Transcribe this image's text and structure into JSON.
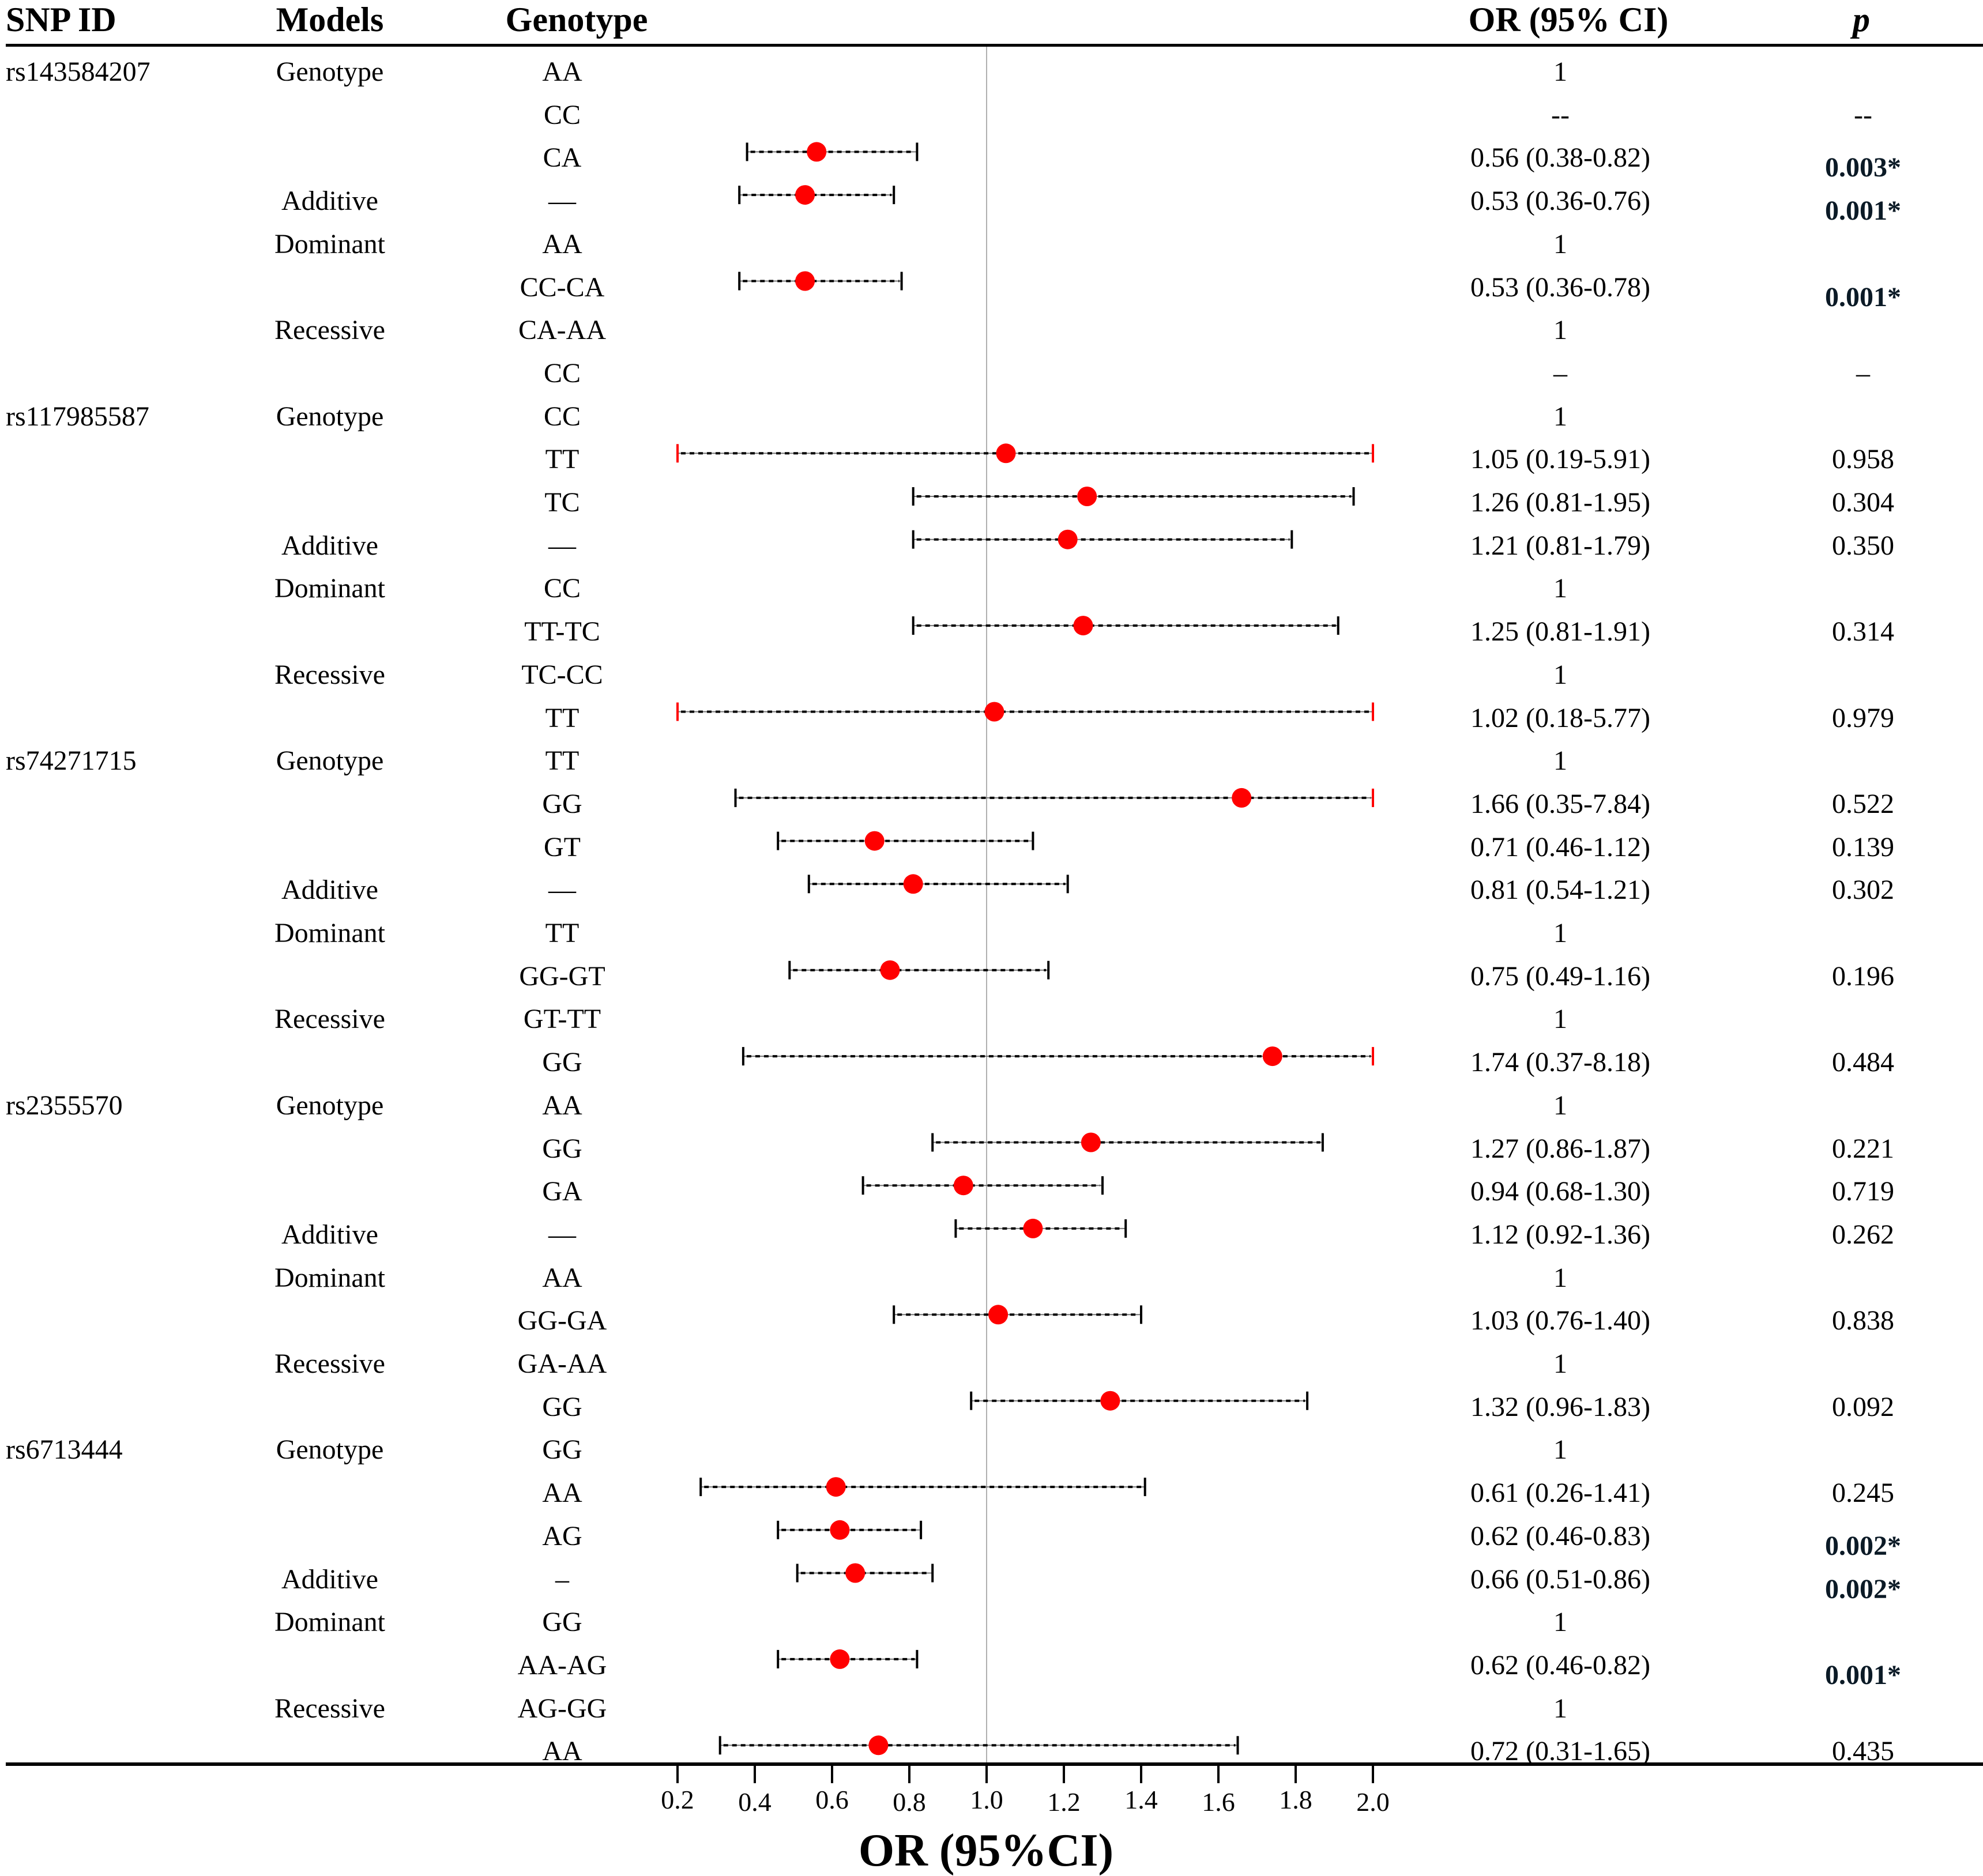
{
  "headers": {
    "snp_id": "SNP ID",
    "models": "Models",
    "genotype": "Genotype",
    "or_ci": "OR (95% CI)",
    "p": "p"
  },
  "chart_data": {
    "type": "forest",
    "title": "",
    "xlabel": "OR (95%CI)",
    "ylabel": "",
    "xlim": [
      0.2,
      2.0
    ],
    "x_ticks": [
      "0.2",
      "0.4",
      "0.6",
      "0.8",
      "1.0",
      "1.2",
      "1.4",
      "1.6",
      "1.8",
      "2.0"
    ],
    "reference_line": 1.0,
    "marker_color": "#ff0000",
    "truncated_cap_color": "#ff0000",
    "significant_p_color": "#0b1a26",
    "rows": [
      {
        "snp": "rs143584207",
        "model": "Genotype",
        "genotype": "AA",
        "or_text": "1",
        "p": "",
        "sig": false
      },
      {
        "snp": "",
        "model": "",
        "genotype": "CC",
        "or_text": "--",
        "p": "--",
        "sig": false
      },
      {
        "snp": "",
        "model": "",
        "genotype": "CA",
        "or_text": "0.56 (0.38-0.82)",
        "p": "0.003*",
        "sig": true,
        "or": 0.56,
        "lo": 0.38,
        "hi": 0.82
      },
      {
        "snp": "",
        "model": "Additive",
        "genotype": "—",
        "or_text": "0.53 (0.36-0.76)",
        "p": "0.001*",
        "sig": true,
        "or": 0.53,
        "lo": 0.36,
        "hi": 0.76
      },
      {
        "snp": "",
        "model": "Dominant",
        "genotype": "AA",
        "or_text": "1",
        "p": "",
        "sig": false
      },
      {
        "snp": "",
        "model": "",
        "genotype": "CC-CA",
        "or_text": "0.53 (0.36-0.78)",
        "p": "0.001*",
        "sig": true,
        "or": 0.53,
        "lo": 0.36,
        "hi": 0.78
      },
      {
        "snp": "",
        "model": "Recessive",
        "genotype": "CA-AA",
        "or_text": "1",
        "p": "",
        "sig": false
      },
      {
        "snp": "",
        "model": "",
        "genotype": "CC",
        "or_text": "–",
        "p": "–",
        "sig": false
      },
      {
        "snp": "rs117985587",
        "model": "Genotype",
        "genotype": "CC",
        "or_text": "1",
        "p": "",
        "sig": false
      },
      {
        "snp": "",
        "model": "",
        "genotype": "TT",
        "or_text": "1.05 (0.19-5.91)",
        "p": "0.958",
        "sig": false,
        "or": 1.05,
        "lo": 0.19,
        "hi": 5.91
      },
      {
        "snp": "",
        "model": "",
        "genotype": "TC",
        "or_text": "1.26 (0.81-1.95)",
        "p": "0.304",
        "sig": false,
        "or": 1.26,
        "lo": 0.81,
        "hi": 1.95
      },
      {
        "snp": "",
        "model": "Additive",
        "genotype": "—",
        "or_text": "1.21 (0.81-1.79)",
        "p": "0.350",
        "sig": false,
        "or": 1.21,
        "lo": 0.81,
        "hi": 1.79
      },
      {
        "snp": "",
        "model": "Dominant",
        "genotype": "CC",
        "or_text": "1",
        "p": "",
        "sig": false
      },
      {
        "snp": "",
        "model": "",
        "genotype": "TT-TC",
        "or_text": "1.25 (0.81-1.91)",
        "p": "0.314",
        "sig": false,
        "or": 1.25,
        "lo": 0.81,
        "hi": 1.91
      },
      {
        "snp": "",
        "model": "Recessive",
        "genotype": "TC-CC",
        "or_text": "1",
        "p": "",
        "sig": false
      },
      {
        "snp": "",
        "model": "",
        "genotype": "TT",
        "or_text": "1.02 (0.18-5.77)",
        "p": "0.979",
        "sig": false,
        "or": 1.02,
        "lo": 0.18,
        "hi": 5.77
      },
      {
        "snp": "rs74271715",
        "model": "Genotype",
        "genotype": "TT",
        "or_text": "1",
        "p": "",
        "sig": false
      },
      {
        "snp": "",
        "model": "",
        "genotype": "GG",
        "or_text": "1.66 (0.35-7.84)",
        "p": "0.522",
        "sig": false,
        "or": 1.66,
        "lo": 0.35,
        "hi": 7.84
      },
      {
        "snp": "",
        "model": "",
        "genotype": "GT",
        "or_text": "0.71 (0.46-1.12)",
        "p": "0.139",
        "sig": false,
        "or": 0.71,
        "lo": 0.46,
        "hi": 1.12
      },
      {
        "snp": "",
        "model": "Additive",
        "genotype": "—",
        "or_text": "0.81 (0.54-1.21)",
        "p": "0.302",
        "sig": false,
        "or": 0.81,
        "lo": 0.54,
        "hi": 1.21
      },
      {
        "snp": "",
        "model": "Dominant",
        "genotype": "TT",
        "or_text": "1",
        "p": "",
        "sig": false
      },
      {
        "snp": "",
        "model": "",
        "genotype": "GG-GT",
        "or_text": "0.75 (0.49-1.16)",
        "p": "0.196",
        "sig": false,
        "or": 0.75,
        "lo": 0.49,
        "hi": 1.16
      },
      {
        "snp": "",
        "model": "Recessive",
        "genotype": "GT-TT",
        "or_text": "1",
        "p": "",
        "sig": false
      },
      {
        "snp": "",
        "model": "",
        "genotype": "GG",
        "or_text": "1.74 (0.37-8.18)",
        "p": "0.484",
        "sig": false,
        "or": 1.74,
        "lo": 0.37,
        "hi": 8.18
      },
      {
        "snp": "rs2355570",
        "model": "Genotype",
        "genotype": "AA",
        "or_text": "1",
        "p": "",
        "sig": false
      },
      {
        "snp": "",
        "model": "",
        "genotype": "GG",
        "or_text": "1.27 (0.86-1.87)",
        "p": "0.221",
        "sig": false,
        "or": 1.27,
        "lo": 0.86,
        "hi": 1.87
      },
      {
        "snp": "",
        "model": "",
        "genotype": "GA",
        "or_text": "0.94 (0.68-1.30)",
        "p": "0.719",
        "sig": false,
        "or": 0.94,
        "lo": 0.68,
        "hi": 1.3
      },
      {
        "snp": "",
        "model": "Additive",
        "genotype": "—",
        "or_text": "1.12 (0.92-1.36)",
        "p": "0.262",
        "sig": false,
        "or": 1.12,
        "lo": 0.92,
        "hi": 1.36
      },
      {
        "snp": "",
        "model": "Dominant",
        "genotype": "AA",
        "or_text": "1",
        "p": "",
        "sig": false
      },
      {
        "snp": "",
        "model": "",
        "genotype": "GG-GA",
        "or_text": "1.03 (0.76-1.40)",
        "p": "0.838",
        "sig": false,
        "or": 1.03,
        "lo": 0.76,
        "hi": 1.4
      },
      {
        "snp": "",
        "model": "Recessive",
        "genotype": "GA-AA",
        "or_text": "1",
        "p": "",
        "sig": false
      },
      {
        "snp": "",
        "model": "",
        "genotype": "GG",
        "or_text": "1.32 (0.96-1.83)",
        "p": "0.092",
        "sig": false,
        "or": 1.32,
        "lo": 0.96,
        "hi": 1.83
      },
      {
        "snp": "rs6713444",
        "model": "Genotype",
        "genotype": "GG",
        "or_text": "1",
        "p": "",
        "sig": false
      },
      {
        "snp": "",
        "model": "",
        "genotype": "AA",
        "or_text": "0.61 (0.26-1.41)",
        "p": "0.245",
        "sig": false,
        "or": 0.61,
        "lo": 0.26,
        "hi": 1.41
      },
      {
        "snp": "",
        "model": "",
        "genotype": "AG",
        "or_text": "0.62 (0.46-0.83)",
        "p": "0.002*",
        "sig": true,
        "or": 0.62,
        "lo": 0.46,
        "hi": 0.83
      },
      {
        "snp": "",
        "model": "Additive",
        "genotype": "–",
        "or_text": "0.66 (0.51-0.86)",
        "p": "0.002*",
        "sig": true,
        "or": 0.66,
        "lo": 0.51,
        "hi": 0.86
      },
      {
        "snp": "",
        "model": "Dominant",
        "genotype": "GG",
        "or_text": "1",
        "p": "",
        "sig": false
      },
      {
        "snp": "",
        "model": "",
        "genotype": "AA-AG",
        "or_text": "0.62 (0.46-0.82)",
        "p": "0.001*",
        "sig": true,
        "or": 0.62,
        "lo": 0.46,
        "hi": 0.82
      },
      {
        "snp": "",
        "model": "Recessive",
        "genotype": "AG-GG",
        "or_text": "1",
        "p": "",
        "sig": false
      },
      {
        "snp": "",
        "model": "",
        "genotype": "AA",
        "or_text": "0.72 (0.31-1.65)",
        "p": "0.435",
        "sig": false,
        "or": 0.72,
        "lo": 0.31,
        "hi": 1.65
      }
    ]
  }
}
